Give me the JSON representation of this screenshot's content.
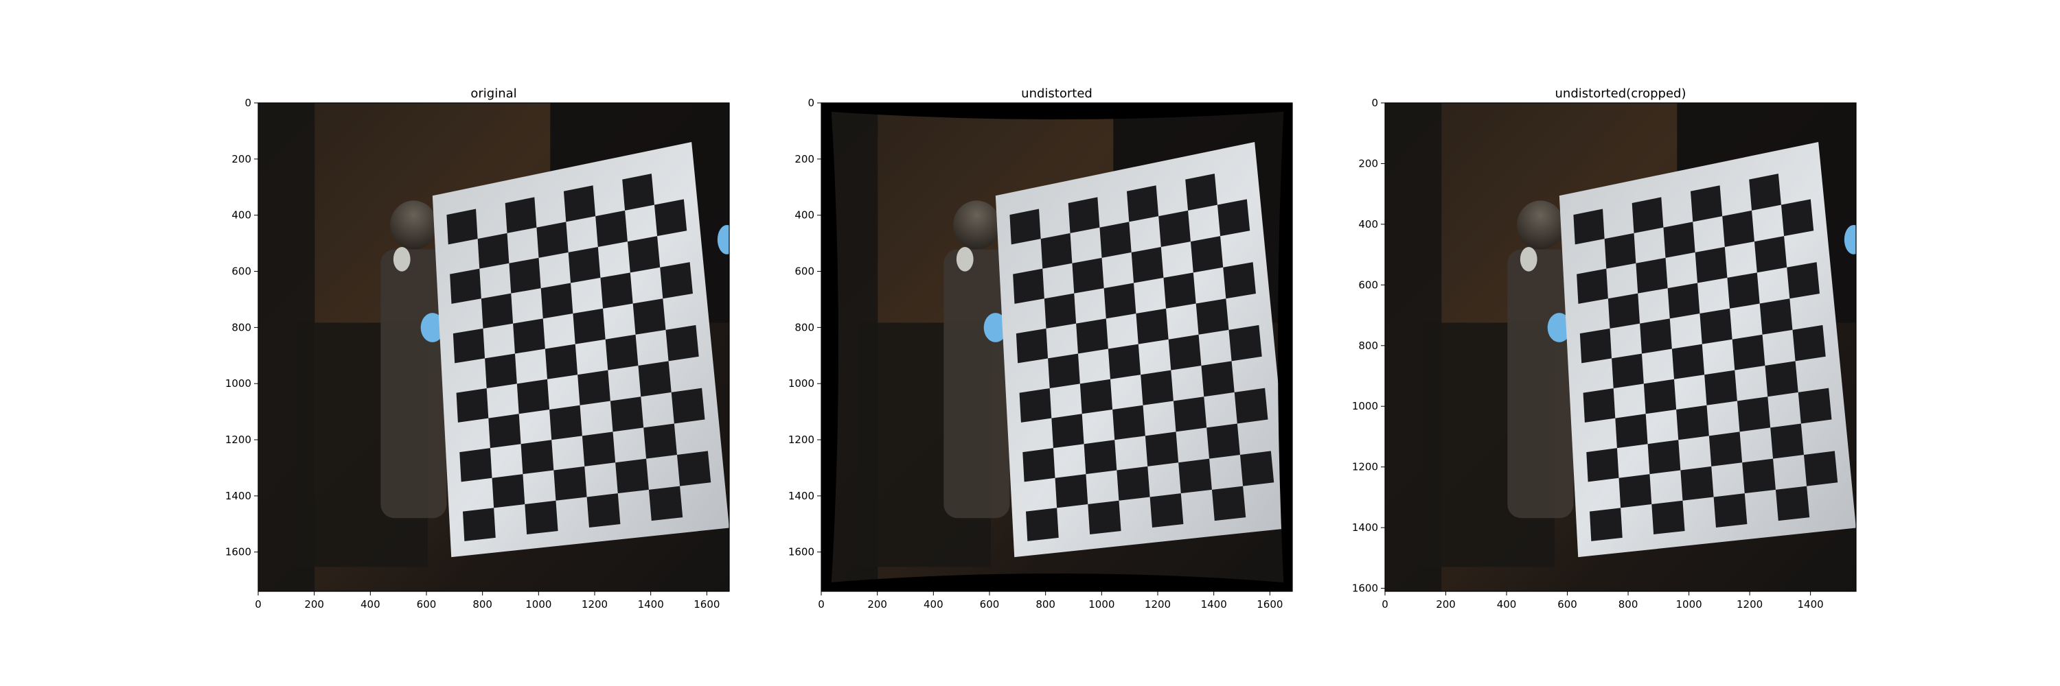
{
  "figure": {
    "panels": [
      {
        "title": "original",
        "photo_description": "dark room, person holding a tilted 8x11 black and white checkerboard calibration target",
        "x_ticks": [
          "0",
          "200",
          "400",
          "600",
          "800",
          "1000",
          "1200",
          "1400",
          "1600"
        ],
        "y_ticks": [
          "0",
          "200",
          "400",
          "600",
          "800",
          "1000",
          "1200",
          "1400",
          "1600"
        ],
        "x_range": [
          0,
          1680
        ],
        "y_range": [
          0,
          1740
        ],
        "warped_borders": false
      },
      {
        "title": "undistorted",
        "photo_description": "same scene after lens undistortion with black curved borders",
        "x_ticks": [
          "0",
          "200",
          "400",
          "600",
          "800",
          "1000",
          "1200",
          "1400",
          "1600"
        ],
        "y_ticks": [
          "0",
          "200",
          "400",
          "600",
          "800",
          "1000",
          "1200",
          "1400",
          "1600"
        ],
        "x_range": [
          0,
          1680
        ],
        "y_range": [
          0,
          1740
        ],
        "warped_borders": true
      },
      {
        "title": "undistorted(cropped)",
        "photo_description": "undistorted scene cropped to valid region",
        "x_ticks": [
          "0",
          "200",
          "400",
          "600",
          "800",
          "1000",
          "1200",
          "1400"
        ],
        "y_ticks": [
          "0",
          "200",
          "400",
          "600",
          "800",
          "1000",
          "1200",
          "1400",
          "1600"
        ],
        "x_range": [
          0,
          1550
        ],
        "y_range": [
          0,
          1610
        ],
        "warped_borders": false
      }
    ],
    "colors": {
      "room_dark": "#151413",
      "room_warm": "#3a2a1c",
      "board_white": "#d9dde0",
      "board_black": "#1b1b1e",
      "glove_blue": "#6fb5e6"
    }
  }
}
